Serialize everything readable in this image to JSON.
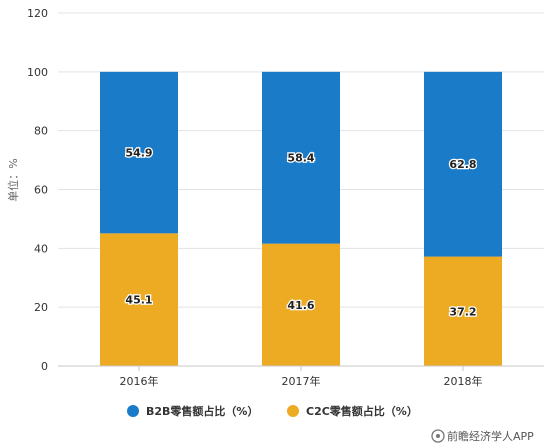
{
  "chart_data": {
    "type": "bar",
    "stacked": true,
    "categories": [
      "2016年",
      "2017年",
      "2018年"
    ],
    "series": [
      {
        "name": "C2C零售额占比（%）",
        "values": [
          45.1,
          41.6,
          37.2
        ],
        "color": "#EDAB24"
      },
      {
        "name": "B2B零售额占比（%）",
        "values": [
          54.9,
          58.4,
          62.8
        ],
        "color": "#1A7BC9"
      }
    ],
    "data_labels": [
      [
        "45.1",
        "41.6",
        "37.2"
      ],
      [
        "54.9",
        "58.4",
        "62.8"
      ]
    ],
    "ylabel": "单位：%",
    "ylim": [
      0,
      120
    ],
    "yticks": [
      "0",
      "20",
      "40",
      "60",
      "80",
      "100",
      "120"
    ],
    "grid": true,
    "legend": {
      "position": "bottom",
      "order": [
        "B2B零售额占比（%）",
        "C2C零售额占比（%）"
      ]
    }
  },
  "watermark": {
    "text": "前瞻经济学人APP",
    "icon": "qianzhan-logo-icon"
  }
}
